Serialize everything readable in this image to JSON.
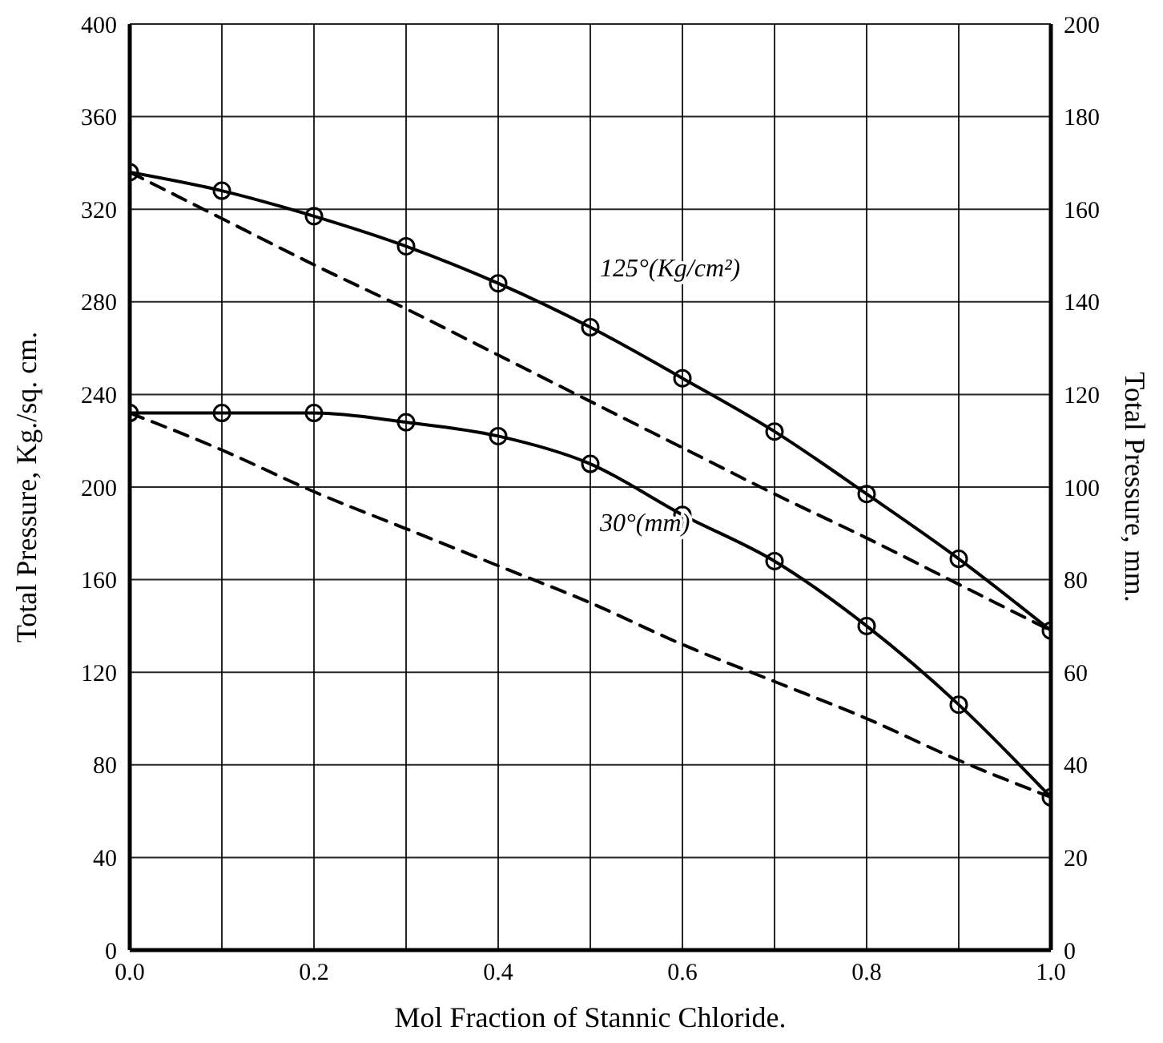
{
  "chart_data": {
    "type": "line",
    "xlabel": "Mol Fraction of Stannic Chloride.",
    "ylabel": "Total Pressure, Kg./sq. cm.",
    "y2label": "Total Pressure, mm.",
    "x": [
      0,
      0.1,
      0.2,
      0.3,
      0.4,
      0.5,
      0.6,
      0.7,
      0.8,
      0.9,
      1.0
    ],
    "series": [
      {
        "name": "125°(Kg/cm²)",
        "color": "#000000",
        "values": [
          336,
          328,
          317,
          304,
          288,
          269,
          247,
          224,
          197,
          169,
          138
        ],
        "marker": "circle"
      },
      {
        "name": "30°(mm)",
        "color": "#000000",
        "axis": "y2",
        "values": [
          116,
          116,
          116,
          114,
          111,
          105,
          94,
          84,
          70,
          53,
          33
        ],
        "marker": "circle"
      },
      {
        "color": "#000000",
        "values": [
          336,
          316,
          296,
          277,
          257,
          237,
          217,
          197,
          178,
          158,
          138
        ],
        "line_style": "dashed",
        "marker": "none"
      },
      {
        "color": "#000000",
        "axis": "y2",
        "values": [
          116,
          108,
          99,
          91,
          83,
          75,
          66,
          58,
          50,
          41,
          33
        ],
        "line_style": "dashed",
        "marker": "none"
      }
    ],
    "xlim": [
      0,
      1.0
    ],
    "xticks": [
      {
        "value": 0,
        "label": "0.0"
      },
      {
        "value": 0.1,
        "label": null
      },
      {
        "value": 0.2,
        "label": "0.2"
      },
      {
        "value": 0.3,
        "label": null
      },
      {
        "value": 0.4,
        "label": "0.4"
      },
      {
        "value": 0.5,
        "label": null
      },
      {
        "value": 0.6,
        "label": "0.6"
      },
      {
        "value": 0.7,
        "label": null
      },
      {
        "value": 0.8,
        "label": "0.8"
      },
      {
        "value": 0.9,
        "label": null
      },
      {
        "value": 1.0,
        "label": "1.0"
      }
    ],
    "ylim": [
      0,
      400
    ],
    "yticks": [
      0,
      40,
      80,
      120,
      160,
      200,
      240,
      280,
      320,
      360,
      400
    ],
    "y2lim": [
      0,
      200
    ],
    "y2ticks": [
      0,
      20,
      40,
      60,
      80,
      100,
      120,
      140,
      160,
      180,
      200
    ],
    "grid": true,
    "legend": false
  }
}
